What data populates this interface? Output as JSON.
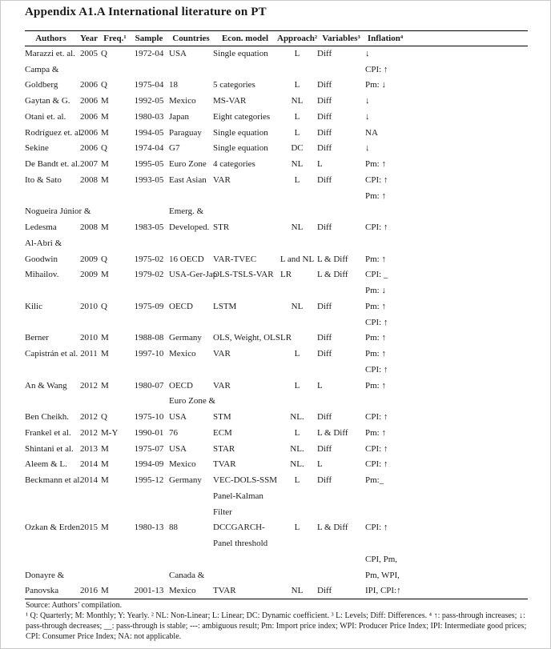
{
  "page": {
    "title": "Appendix A1.A International literature on PT"
  },
  "table": {
    "columns": [
      {
        "key": "authors",
        "label": "Authors"
      },
      {
        "key": "year",
        "label": "Year"
      },
      {
        "key": "freq",
        "label": "Freq.¹"
      },
      {
        "key": "sample",
        "label": "Sample"
      },
      {
        "key": "countries",
        "label": "Countries"
      },
      {
        "key": "model",
        "label": "Econ. model"
      },
      {
        "key": "approach",
        "label": "Approach²"
      },
      {
        "key": "variables",
        "label": "Variables³"
      },
      {
        "key": "inflation",
        "label": "Inflation⁴"
      }
    ],
    "rows": [
      [
        "Marazzi et. al.",
        "2005",
        "Q",
        "1972-04",
        "USA",
        "Single equation",
        "L",
        "Diff",
        "↓"
      ],
      [
        "Campa &",
        "",
        "",
        "",
        "",
        "",
        "",
        "",
        "CPI: ↑"
      ],
      [
        "Goldberg",
        "2006",
        "Q",
        "1975-04",
        "18",
        "5 categories",
        "L",
        "Diff",
        "Pm: ↓"
      ],
      [
        "Gaytan & G.",
        "2006",
        "M",
        "1992-05",
        "Mexico",
        "MS-VAR",
        "NL",
        "Diff",
        "↓"
      ],
      [
        "Otani et. al.",
        "2006",
        "M",
        "1980-03",
        "Japan",
        "Eight categories",
        "L",
        "Diff",
        "↓"
      ],
      [
        "Rodríguez et. al.",
        "2006",
        "M",
        "1994-05",
        "Paraguay",
        "Single equation",
        "L",
        "Diff",
        "NA"
      ],
      [
        "Sekine",
        "2006",
        "Q",
        "1974-04",
        "G7",
        "Single equation",
        "DC",
        "Diff",
        "↓"
      ],
      [
        "De Bandt et. al.",
        "2007",
        "M",
        "1995-05",
        "Euro Zone",
        "4 categories",
        "NL",
        "L",
        "Pm: ↑"
      ],
      [
        "Ito & Sato",
        "2008",
        "M",
        "1993-05",
        "East Asian",
        "VAR",
        "L",
        "Diff",
        "CPI: ↑"
      ],
      [
        "",
        "",
        "",
        "",
        "",
        "",
        "",
        "",
        "Pm: ↑"
      ],
      [
        "Nogueira Júnior &",
        "",
        "",
        "",
        "Emerg. &",
        "",
        "",
        "",
        ""
      ],
      [
        "Ledesma",
        "2008",
        "M",
        "1983-05",
        "Developed.",
        "STR",
        "NL",
        "Diff",
        "CPI: ↑"
      ],
      [
        "Al-Abri &",
        "",
        "",
        "",
        "",
        "",
        "",
        "",
        ""
      ],
      [
        "Goodwin",
        "2009",
        "Q",
        "1975-02",
        "16 OECD",
        "VAR-TVEC",
        "L and NL",
        "L & Diff",
        "Pm: ↑"
      ],
      [
        "Mihailov.",
        "2009",
        "M",
        "1979-02",
        "USA-Ger-Jap",
        "OLS-TSLS-VAR",
        "LR",
        "L & Diff",
        "CPI: _"
      ],
      [
        "",
        "",
        "",
        "",
        "",
        "",
        "",
        "",
        "Pm: ↓"
      ],
      [
        "Kilic",
        "2010",
        "Q",
        "1975-09",
        "OECD",
        "LSTM",
        "NL",
        "Diff",
        "Pm: ↑"
      ],
      [
        "",
        "",
        "",
        "",
        "",
        "",
        "",
        "",
        "CPI: ↑"
      ],
      [
        "Berner",
        "2010",
        "M",
        "1988-08",
        "Germany",
        "OLS, Weight, OLS",
        "LR",
        "Diff",
        "Pm: ↑"
      ],
      [
        "Capistrán et al.",
        "2011",
        "M",
        "1997-10",
        "Mexico",
        "VAR",
        "L",
        "Diff",
        "Pm: ↑"
      ],
      [
        "",
        "",
        "",
        "",
        "",
        "",
        "",
        "",
        "CPI: ↑"
      ],
      [
        "An & Wang",
        "2012",
        "M",
        "1980-07",
        "OECD",
        "VAR",
        "L",
        "L",
        "Pm: ↑"
      ],
      [
        "",
        "",
        "",
        "",
        "Euro Zone &",
        "",
        "",
        "",
        ""
      ],
      [
        "Ben Cheikh.",
        "2012",
        "Q",
        "1975-10",
        "USA",
        "STM",
        "NL.",
        "Diff",
        "CPI: ↑"
      ],
      [
        "Frankel et al.",
        "2012",
        "M-Y",
        "1990-01",
        "76",
        "ECM",
        "L",
        "L & Diff",
        "Pm: ↑"
      ],
      [
        "Shintani et al.",
        "2013",
        "M",
        "1975-07",
        "USA",
        "STAR",
        "NL.",
        "Diff",
        "CPI: ↑"
      ],
      [
        "Aleem & L.",
        "2014",
        "M",
        "1994-09",
        "Mexico",
        "TVAR",
        "NL.",
        "L",
        "CPI: ↑"
      ],
      [
        "Beckmann et al.",
        "2014",
        "M",
        "1995-12",
        "Germany",
        "VEC-DOLS-SSM",
        "L",
        "Diff",
        "Pm:_"
      ],
      [
        "",
        "",
        "",
        "",
        "",
        "Panel-Kalman",
        "",
        "",
        ""
      ],
      [
        "",
        "",
        "",
        "",
        "",
        "Filter",
        "",
        "",
        ""
      ],
      [
        "Ozkan & Erden",
        "2015",
        "M",
        "1980-13",
        "88",
        "DCCGARCH-",
        "L",
        "L & Diff",
        "CPI: ↑"
      ],
      [
        "",
        "",
        "",
        "",
        "",
        "Panel threshold",
        "",
        "",
        ""
      ],
      [
        "",
        "",
        "",
        "",
        "",
        "",
        "",
        "",
        "CPI, Pm,"
      ],
      [
        "Donayre &",
        "",
        "",
        "",
        "Canada &",
        "",
        "",
        "",
        "Pm, WPI,"
      ],
      [
        "Panovska",
        "2016",
        "M",
        "2001-13",
        "Mexico",
        "TVAR",
        "NL",
        "Diff",
        "IPI, CPI:↑"
      ]
    ]
  },
  "footer": {
    "source": "Source: Authors’ compilation.",
    "notes": "¹ Q: Quarterly; M: Monthly; Y: Yearly. ² NL: Non-Linear; L: Linear; DC: Dynamic coefficient. ³ L: Levels; Diff: Differences. ⁴ ↑: pass-through increases; ↓: pass-through decreases; __: pass-through is stable; ---: ambiguous result; Pm: Import price index; WPI: Producer Price Index; IPI: Intermediate good prices; CPI: Consumer Price Index; NA: not applicable."
  }
}
